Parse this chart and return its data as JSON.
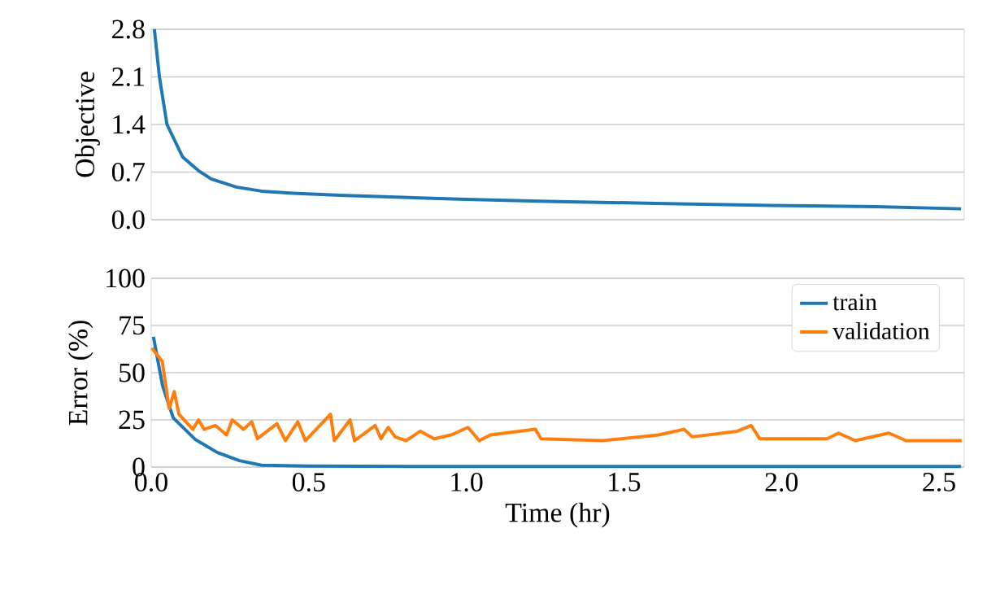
{
  "chart_data": [
    {
      "type": "line",
      "ylabel": "Objective",
      "xlim": [
        0,
        2.58
      ],
      "ylim": [
        0,
        2.8
      ],
      "yticks": [
        {
          "value": 0,
          "label": "0.0"
        },
        0.7,
        1.4,
        2.1,
        2.8
      ],
      "grid": "y",
      "tick_labels": "y",
      "series": [
        {
          "color": "#1f77b4",
          "x": [
            0.01,
            0.026,
            0.05,
            0.1,
            0.15,
            0.19,
            0.27,
            0.35,
            0.45,
            0.6,
            0.72,
            1.0,
            1.26,
            1.6,
            1.97,
            2.3,
            2.57
          ],
          "values": [
            2.8,
            2.1,
            1.4,
            0.92,
            0.72,
            0.6,
            0.48,
            0.42,
            0.39,
            0.36,
            0.34,
            0.3,
            0.27,
            0.24,
            0.21,
            0.19,
            0.16
          ]
        }
      ]
    },
    {
      "type": "line",
      "xlabel": "Time (hr)",
      "ylabel": "Error (%)",
      "xlim": [
        0,
        2.58
      ],
      "ylim": [
        0,
        100
      ],
      "xticks": [
        {
          "value": 0,
          "label": "0.0"
        },
        0.5,
        {
          "value": 1,
          "label": "1.0"
        },
        1.5,
        {
          "value": 2,
          "label": "2.0"
        },
        2.5
      ],
      "yticks": [
        0,
        25,
        50,
        75,
        100
      ],
      "grid": "y",
      "legend": "top right",
      "series": [
        {
          "name": "train",
          "color": "#1f77b4",
          "x": [
            0.007,
            0.036,
            0.07,
            0.14,
            0.21,
            0.28,
            0.35,
            0.5,
            1.0,
            1.5,
            2.0,
            2.57
          ],
          "values": [
            69,
            43,
            26,
            14.6,
            7.7,
            3.4,
            1,
            0.5,
            0.3,
            0.3,
            0.3,
            0.3
          ]
        },
        {
          "name": "validation",
          "color": "#ff7f0e",
          "x": [
            0.002,
            0.035,
            0.057,
            0.073,
            0.088,
            0.132,
            0.15,
            0.168,
            0.204,
            0.239,
            0.257,
            0.293,
            0.319,
            0.337,
            0.399,
            0.426,
            0.465,
            0.489,
            0.569,
            0.581,
            0.631,
            0.645,
            0.711,
            0.729,
            0.752,
            0.774,
            0.809,
            0.854,
            0.898,
            0.952,
            1.005,
            1.041,
            1.076,
            1.219,
            1.237,
            1.432,
            1.61,
            1.691,
            1.717,
            1.86,
            1.904,
            1.931,
            2.145,
            2.181,
            2.234,
            2.341,
            2.395,
            2.572
          ],
          "values": [
            63,
            56,
            31,
            40,
            28,
            20,
            25,
            20,
            22,
            17,
            25,
            20,
            24,
            15,
            23,
            14,
            24,
            14,
            28,
            14,
            25,
            14,
            22,
            15,
            21,
            16,
            14,
            19,
            15,
            17,
            21,
            14,
            17,
            20,
            15,
            14,
            17,
            20,
            16,
            19,
            22,
            15,
            15,
            18,
            14,
            18,
            14,
            14
          ]
        }
      ]
    }
  ]
}
